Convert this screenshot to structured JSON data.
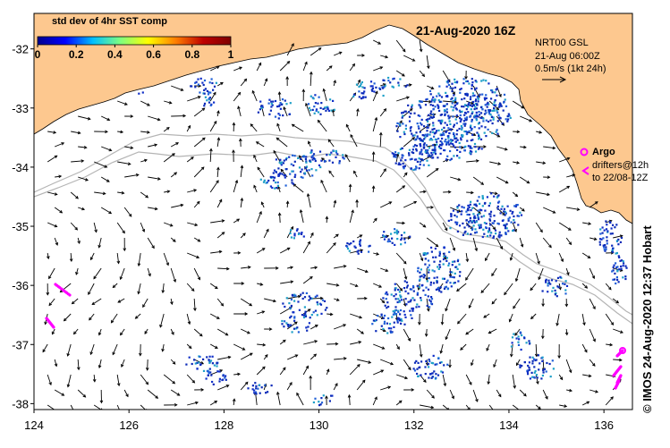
{
  "map": {
    "title": "21-Aug-2020 16Z",
    "colorbar": {
      "title": "std dev of 4hr SST comp",
      "ticks": [
        "0",
        "0.2",
        "0.4",
        "0.6",
        "0.8",
        "1"
      ],
      "colors": [
        "#00008f",
        "#0000ff",
        "#00bfff",
        "#7fff7f",
        "#ffff00",
        "#ff7f00",
        "#bf0000",
        "#7f0000"
      ]
    },
    "product": {
      "name": "NRT00 GSL",
      "time": "21-Aug 06:00Z",
      "scale_label": "0.5m/s (1kt 24h)"
    },
    "legend": {
      "argo_label": "Argo",
      "drifters_line1": "drifters@12h",
      "drifters_line2": "to 22/08-12Z",
      "argo_color": "#ff00ff"
    },
    "credit": "© IMOS 24-Aug-2020 12:37 Hobart",
    "axes": {
      "x_ticks": [
        "124",
        "126",
        "128",
        "130",
        "132",
        "134",
        "136"
      ],
      "y_ticks": [
        "-32",
        "-33",
        "-34",
        "-35",
        "-36",
        "-37",
        "-38"
      ],
      "lon_range": [
        124,
        136.6
      ],
      "lat_range": [
        -38.1,
        -31.4
      ]
    },
    "colors": {
      "land": "#fdc88f",
      "sst_low": "#0a2ab8",
      "sst_mid": "#1ea0c8",
      "bathymetry": "#b4b4b4"
    }
  }
}
